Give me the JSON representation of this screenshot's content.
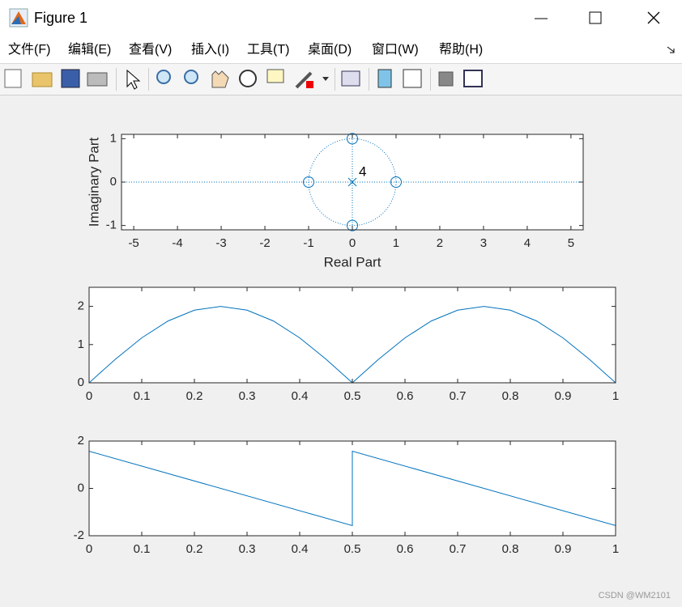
{
  "window": {
    "title": "Figure 1",
    "menu": [
      "文件(F)",
      "编辑(E)",
      "查看(V)",
      "插入(I)",
      "工具(T)",
      "桌面(D)",
      "窗口(W)",
      "帮助(H)"
    ]
  },
  "chart_data": [
    {
      "type": "zplane",
      "xlabel": "Real Part",
      "ylabel": "Imaginary Part",
      "color": "#0072bd",
      "zeros": {
        "x": [
          1,
          -1,
          0,
          0
        ],
        "y": [
          0,
          0,
          1,
          -1
        ]
      },
      "poles": {
        "x": [
          0
        ],
        "y": [
          0
        ]
      },
      "pole_label": "4",
      "xlim": [
        -5.28,
        5.28
      ],
      "ylim": [
        -1.1,
        1.1
      ],
      "xticks": [
        -5,
        -4,
        -3,
        -2,
        -1,
        0,
        1,
        2,
        3,
        4,
        5
      ],
      "yticks": [
        -1,
        0,
        1
      ]
    },
    {
      "type": "line",
      "x": [
        0,
        0.05,
        0.1,
        0.15,
        0.2,
        0.25,
        0.3,
        0.35,
        0.4,
        0.45,
        0.5,
        0.55,
        0.6,
        0.65,
        0.7,
        0.75,
        0.8,
        0.85,
        0.9,
        0.95,
        1
      ],
      "series": [
        {
          "color": "#0072bd",
          "values": [
            0,
            0.618,
            1.176,
            1.618,
            1.902,
            2,
            1.902,
            1.618,
            1.176,
            0.618,
            0,
            0.618,
            1.176,
            1.618,
            1.902,
            2,
            1.902,
            1.618,
            1.176,
            0.618,
            0
          ]
        }
      ],
      "xlim": [
        0,
        1
      ],
      "ylim": [
        0,
        2.5
      ],
      "xticks": [
        0,
        0.1,
        0.2,
        0.3,
        0.4,
        0.5,
        0.6,
        0.7,
        0.8,
        0.9,
        1
      ],
      "yticks": [
        0,
        1,
        2
      ]
    },
    {
      "type": "line",
      "x": [
        0,
        0.5,
        0.5,
        1
      ],
      "series": [
        {
          "color": "#0072bd",
          "values": [
            1.571,
            -1.571,
            1.571,
            -1.571
          ]
        }
      ],
      "xlim": [
        0,
        1
      ],
      "ylim": [
        -2,
        2
      ],
      "xticks": [
        0,
        0.1,
        0.2,
        0.3,
        0.4,
        0.5,
        0.6,
        0.7,
        0.8,
        0.9,
        1
      ],
      "yticks": [
        -2,
        0,
        2
      ]
    }
  ],
  "watermark": "CSDN @WM2101"
}
